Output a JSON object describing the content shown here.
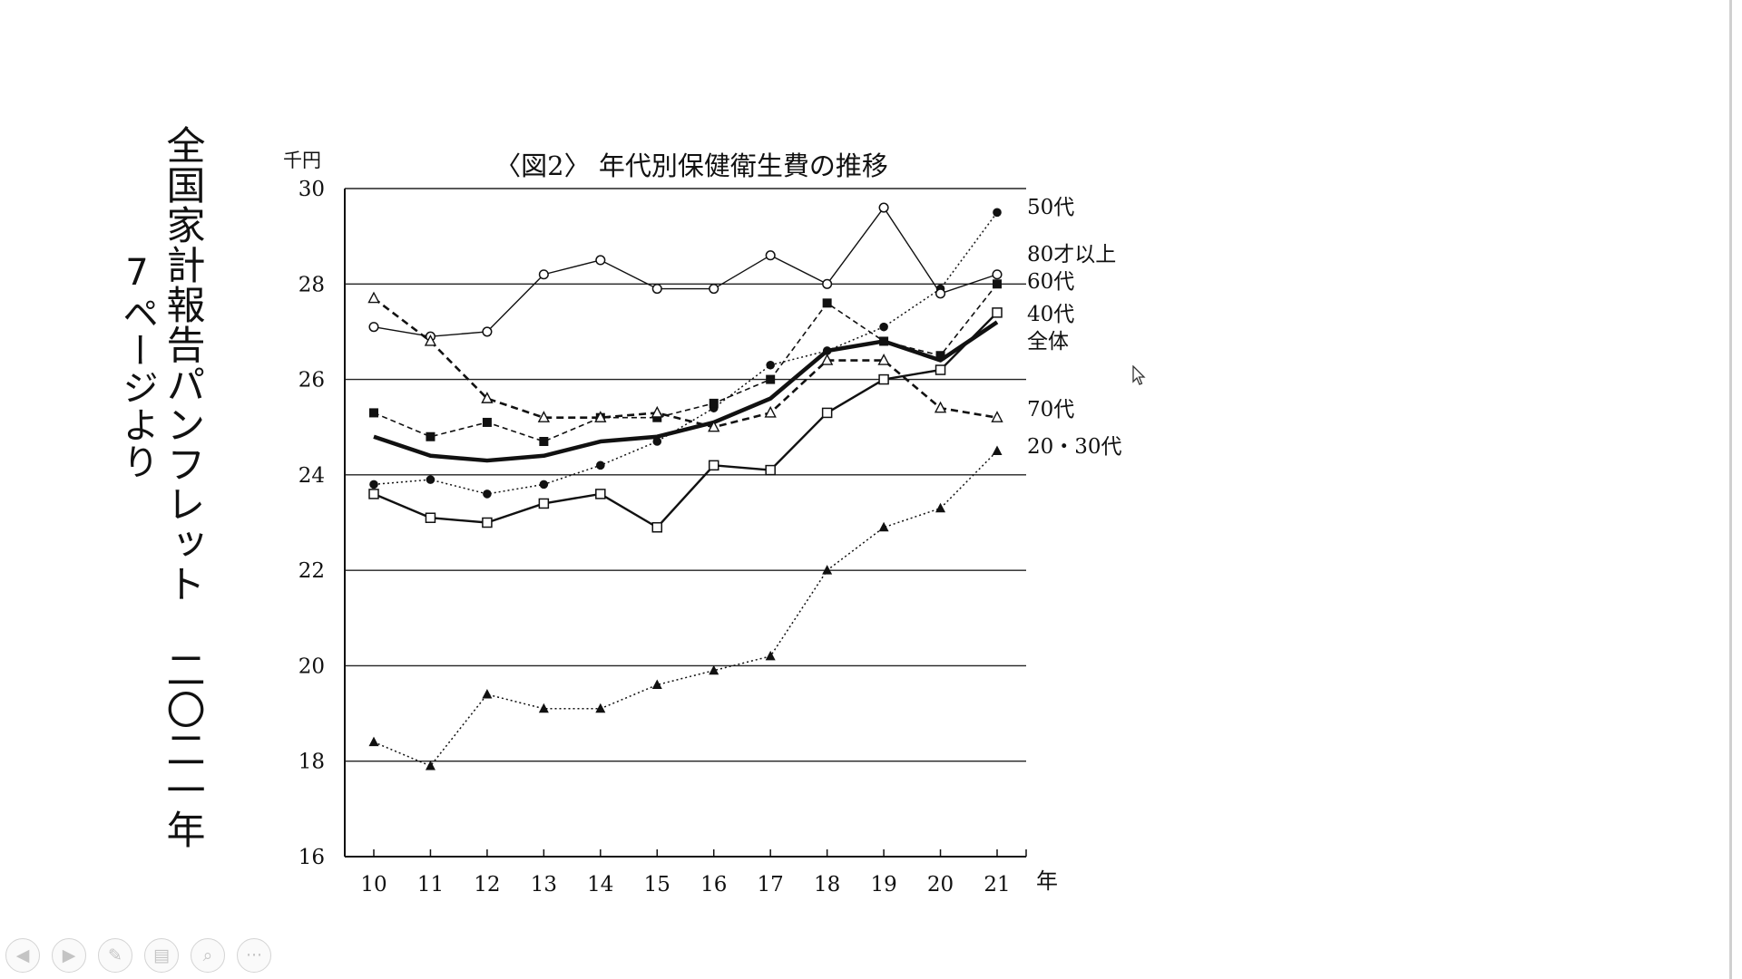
{
  "slide": {
    "vertical_title": "全国家計報告パンフレット 二〇二一年",
    "vertical_source": "7ページより"
  },
  "chart_data": {
    "type": "line",
    "title": "〈図2〉 年代別保健衛生費の推移",
    "ylabel": "千円",
    "xlabel": "年",
    "ylim": [
      16,
      30
    ],
    "yticks": [
      16,
      18,
      20,
      22,
      24,
      26,
      28,
      30
    ],
    "grid": "horizontal",
    "legend": "right, labels at line ends",
    "x": [
      10,
      11,
      12,
      13,
      14,
      15,
      16,
      17,
      18,
      19,
      20,
      21
    ],
    "series": [
      {
        "name": "50代",
        "style": "dotted",
        "marker": "filled-circle",
        "values": [
          23.8,
          23.9,
          23.6,
          23.8,
          24.2,
          24.7,
          25.4,
          26.3,
          26.6,
          27.1,
          27.9,
          29.5
        ]
      },
      {
        "name": "80才以上",
        "style": "thin-solid",
        "marker": "open-circle",
        "values": [
          27.1,
          26.9,
          27.0,
          28.2,
          28.5,
          27.9,
          27.9,
          28.6,
          28.0,
          29.6,
          27.8,
          28.2
        ]
      },
      {
        "name": "60代",
        "style": "dashed",
        "marker": "filled-square",
        "values": [
          25.3,
          24.8,
          25.1,
          24.7,
          25.2,
          25.2,
          25.5,
          26.0,
          27.6,
          26.8,
          26.5,
          28.0
        ]
      },
      {
        "name": "40代",
        "style": "solid",
        "marker": "open-square",
        "values": [
          23.6,
          23.1,
          23.0,
          23.4,
          23.6,
          22.9,
          24.2,
          24.1,
          25.3,
          26.0,
          26.2,
          27.4
        ]
      },
      {
        "name": "全体",
        "style": "thick-solid",
        "marker": "none",
        "values": [
          24.8,
          24.4,
          24.3,
          24.4,
          24.7,
          24.8,
          25.1,
          25.6,
          26.6,
          26.8,
          26.4,
          27.2
        ]
      },
      {
        "name": "70代",
        "style": "bold-dashed",
        "marker": "open-triangle",
        "values": [
          27.7,
          26.8,
          25.6,
          25.2,
          25.2,
          25.3,
          25.0,
          25.3,
          26.4,
          26.4,
          25.4,
          25.2
        ]
      },
      {
        "name": "20・30代",
        "style": "dotted",
        "marker": "filled-triangle",
        "values": [
          18.4,
          17.9,
          19.4,
          19.1,
          19.1,
          19.6,
          19.9,
          20.2,
          22.0,
          22.9,
          23.3,
          24.5
        ]
      }
    ]
  },
  "toolbar": [
    {
      "name": "prev-button",
      "icon": "arrow-left-icon",
      "glyph": "◀"
    },
    {
      "name": "next-button",
      "icon": "arrow-right-icon",
      "glyph": "▶"
    },
    {
      "name": "pen-button",
      "icon": "pen-icon",
      "glyph": "✎"
    },
    {
      "name": "slides-button",
      "icon": "slides-icon",
      "glyph": "▤"
    },
    {
      "name": "zoom-button",
      "icon": "magnifier-icon",
      "glyph": "⌕"
    },
    {
      "name": "more-button",
      "icon": "more-icon",
      "glyph": "···"
    }
  ]
}
